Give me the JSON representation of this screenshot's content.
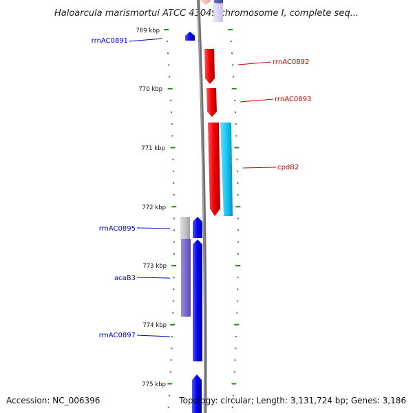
{
  "title": "Haloarcula marismortui ATCC 43049 chromosome I, complete seq...",
  "footer": {
    "accession": "Accession: NC_006396",
    "info": "Topology: circular; Length: 3,131,724 bp; Genes: 3,186"
  },
  "scale_labels": [
    "769 kbp",
    "770 kbp",
    "771 kbp",
    "772 kbp",
    "773 kbp",
    "774 kbp",
    "775 kbp"
  ],
  "gene_labels": {
    "left": [
      "rrnAC0891",
      "rrnAC0895",
      "acaB3",
      "rrnAC0897"
    ],
    "right": [
      "rrnAC0892",
      "rrnAC0893",
      "cpdB2"
    ]
  },
  "colors": {
    "forward_strand": "#0000ee",
    "reverse_strand": "#ee0000",
    "label_forward": "#0000cc",
    "label_reverse": "#cc0000",
    "backbone": "#777777",
    "ruler": "#228b22"
  }
}
